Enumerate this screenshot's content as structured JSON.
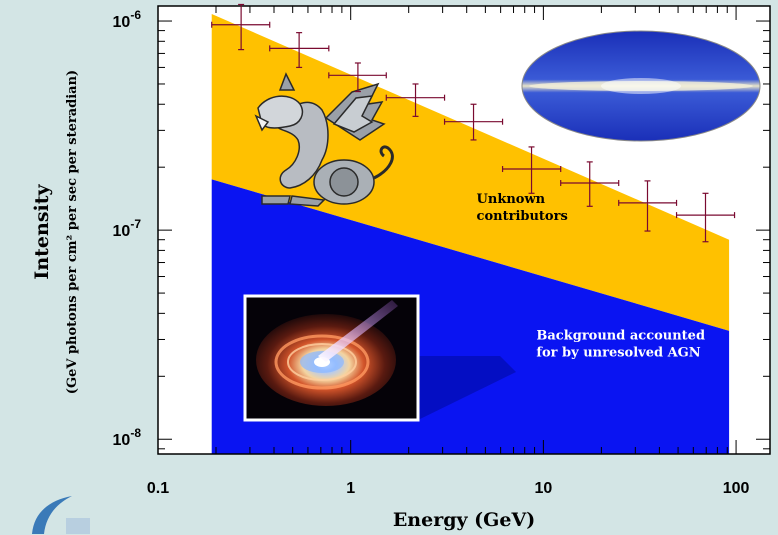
{
  "chart_data": {
    "type": "scatter",
    "title": "",
    "xlabel": "Energy (GeV)",
    "ylabel": "Intensity",
    "ylabel_units": "(GeV photons per cm² per sec per steradian)",
    "x_scale": "log",
    "y_scale": "log",
    "xlim": [
      0.1,
      150
    ],
    "ylim": [
      0.0085,
      1.18
    ],
    "x_ticks": [
      {
        "value": 0.1,
        "label": "0.1"
      },
      {
        "value": 1,
        "label": "1"
      },
      {
        "value": 10,
        "label": "10"
      },
      {
        "value": 100,
        "label": "100"
      }
    ],
    "y_ticks": [
      {
        "value": 0.01,
        "base": "10",
        "exp": "-8"
      },
      {
        "value": 0.1,
        "base": "10",
        "exp": "-7"
      },
      {
        "value": 1,
        "base": "10",
        "exp": "-6"
      }
    ],
    "y_unit_note": "y values are in units of 10^-6",
    "series": [
      {
        "name": "Data points",
        "type": "errorbar",
        "points": [
          {
            "x": 0.27,
            "y": 0.96,
            "xlo": 0.19,
            "xhi": 0.38,
            "ylo": 0.73,
            "yhi": 1.2
          },
          {
            "x": 0.54,
            "y": 0.74,
            "xlo": 0.38,
            "xhi": 0.77,
            "ylo": 0.6,
            "yhi": 0.88
          },
          {
            "x": 1.09,
            "y": 0.55,
            "xlo": 0.77,
            "xhi": 1.53,
            "ylo": 0.46,
            "yhi": 0.63
          },
          {
            "x": 2.17,
            "y": 0.43,
            "xlo": 1.53,
            "xhi": 3.07,
            "ylo": 0.35,
            "yhi": 0.5
          },
          {
            "x": 4.34,
            "y": 0.33,
            "xlo": 3.07,
            "xhi": 6.14,
            "ylo": 0.27,
            "yhi": 0.4
          },
          {
            "x": 8.68,
            "y": 0.196,
            "xlo": 6.14,
            "xhi": 12.3,
            "ylo": 0.15,
            "yhi": 0.25
          },
          {
            "x": 17.4,
            "y": 0.168,
            "xlo": 12.3,
            "xhi": 24.6,
            "ylo": 0.13,
            "yhi": 0.212
          },
          {
            "x": 34.7,
            "y": 0.135,
            "xlo": 24.6,
            "xhi": 49.1,
            "ylo": 0.099,
            "yhi": 0.172
          },
          {
            "x": 69.4,
            "y": 0.118,
            "xlo": 49.1,
            "xhi": 98.2,
            "ylo": 0.088,
            "yhi": 0.15
          }
        ],
        "color": "#7a0a30"
      },
      {
        "name": "Unknown contributors",
        "type": "area",
        "x": [
          0.19,
          92
        ],
        "y_lower": [
          0.175,
          0.033
        ],
        "y_upper": [
          1.08,
          0.09
        ],
        "color": "#ffc100"
      },
      {
        "name": "Background accounted for by unresolved AGN",
        "type": "area",
        "x": [
          0.19,
          92
        ],
        "y_lower": [
          0.0085,
          0.0085
        ],
        "y_upper": [
          0.175,
          0.033
        ],
        "color": "#0a14f2"
      }
    ],
    "annotations": [
      {
        "lines": [
          "Unknown",
          "contributors"
        ],
        "color": "#000000",
        "at": {
          "x": 4.5,
          "y": 0.135
        }
      },
      {
        "lines": [
          "Background accounted",
          "for by unresolved AGN"
        ],
        "color": "#ffffff",
        "at": {
          "x": 9.2,
          "y": 0.03
        }
      }
    ],
    "grid": false,
    "legend": "none",
    "illustrations": [
      "dragon",
      "sky-map",
      "agn-disk",
      "logo"
    ]
  }
}
